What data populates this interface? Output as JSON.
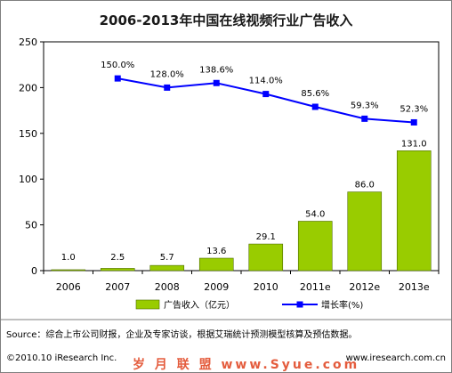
{
  "chart_data": {
    "type": "bar",
    "title": "2006-2013年中国在线视频行业广告收入",
    "categories": [
      "2006",
      "2007",
      "2008",
      "2009",
      "2010",
      "2011e",
      "2012e",
      "2013e"
    ],
    "ylim": [
      0,
      250
    ],
    "yticks": [
      "0",
      "50",
      "100",
      "150",
      "200",
      "250"
    ],
    "series": [
      {
        "name": "广告收入（亿元）",
        "kind": "bar",
        "color": "#99cc00",
        "values": [
          1.0,
          2.5,
          5.7,
          13.6,
          29.1,
          54.0,
          86.0,
          131.0
        ],
        "labels": [
          "1.0",
          "2.5",
          "5.7",
          "13.6",
          "29.1",
          "54.0",
          "86.0",
          "131.0"
        ]
      },
      {
        "name": "增长率(%)",
        "kind": "line",
        "color": "#0000ff",
        "values": [
          null,
          210,
          200,
          205,
          193,
          179,
          166,
          162
        ],
        "labels": [
          "",
          "150.0%",
          "128.0%",
          "138.6%",
          "114.0%",
          "85.6%",
          "59.3%",
          "52.3%"
        ]
      }
    ],
    "legend_placement": "bottom",
    "grid": false
  },
  "source": "Source：综合上市公司财报，企业及专家访谈，根据艾瑞统计预测模型核算及预估数据。",
  "footer": "©2010.10 iResearch Inc.",
  "website": "www.iresearch.com.cn",
  "watermark": "岁 月 联 盟  www.Syue.com"
}
